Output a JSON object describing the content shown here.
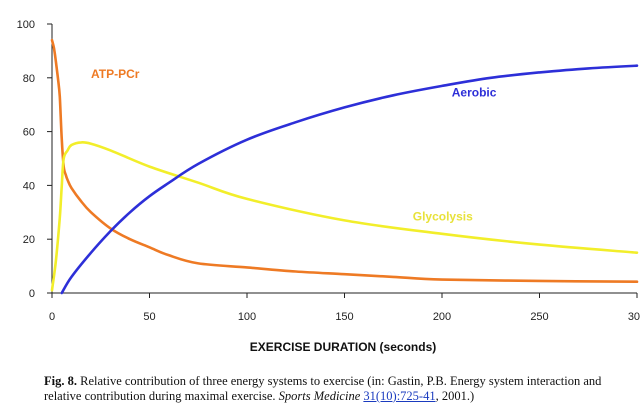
{
  "chart_data": {
    "type": "line",
    "title": "",
    "xlabel": "EXERCISE DURATION (seconds)",
    "ylabel": "",
    "xlim": [
      0,
      300
    ],
    "ylim": [
      0,
      100
    ],
    "x_ticks": [
      "0",
      "50",
      "100",
      "150",
      "200",
      "250",
      "300"
    ],
    "y_ticks": [
      "0",
      "20",
      "40",
      "60",
      "80",
      "100"
    ],
    "grid": false,
    "legend": "inline labels",
    "series": [
      {
        "name": "ATP-PCr",
        "color": "#ee7a24",
        "x": [
          0,
          1,
          2,
          3,
          4,
          5,
          6,
          7,
          8,
          10,
          15,
          20,
          30,
          40,
          50,
          60,
          75,
          100,
          125,
          150,
          175,
          200,
          250,
          300
        ],
        "y": [
          94,
          91,
          86,
          80,
          73,
          57,
          47,
          44,
          42,
          39,
          34,
          30,
          24,
          20,
          17,
          14,
          11,
          9.5,
          8,
          7,
          6,
          5,
          4.5,
          4.2
        ]
      },
      {
        "name": "Glycolysis",
        "color": "#f2ee2a",
        "x": [
          0,
          2,
          4,
          5,
          6,
          8,
          10,
          15,
          20,
          30,
          50,
          75,
          100,
          150,
          200,
          250,
          300
        ],
        "y": [
          1,
          12,
          28,
          40,
          50,
          53,
          55,
          56,
          55.5,
          53,
          47,
          41,
          35,
          27,
          22,
          18,
          15
        ]
      },
      {
        "name": "Aerobic",
        "color": "#2d2fd8",
        "x": [
          5,
          10,
          20,
          30,
          40,
          50,
          60,
          75,
          100,
          125,
          150,
          175,
          200,
          225,
          250,
          275,
          300
        ],
        "y": [
          0,
          6,
          15,
          23,
          30,
          36,
          41,
          48,
          57,
          63.5,
          69,
          73.5,
          77,
          80,
          82,
          83.5,
          84.5
        ]
      }
    ],
    "annotations": [
      {
        "text": "ATP-PCr",
        "x": 20,
        "y": 80,
        "color": "#ee7a24"
      },
      {
        "text": "Aerobic",
        "x": 205,
        "y": 73,
        "color": "#2d2fd8"
      },
      {
        "text": "Glycolysis",
        "x": 185,
        "y": 27,
        "color": "#e8e23a"
      }
    ]
  },
  "caption": {
    "label": "Fig. 8.",
    "text_1": "Relative contribution of three energy systems to exercise (in: Gastin, P.B. Energy system interaction and relative contribution during maximal exercise.",
    "journal": "Sports Medicine",
    "citation": "31(10):725-41",
    "text_2": ", 2001.)"
  }
}
